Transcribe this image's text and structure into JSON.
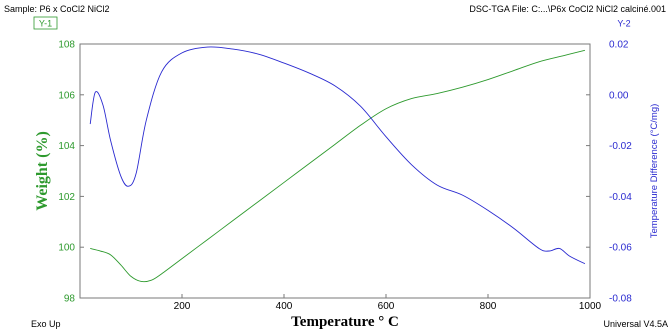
{
  "header": {
    "sample": "Sample: P6 x CoCl2 NiCl2",
    "file": "DSC-TGA File: C:...\\P6x  CoCl2 NiCl2 calciné.001"
  },
  "footer": {
    "exo": "Exo Up",
    "software": "Universal V4.5A"
  },
  "colors": {
    "weight": "#2e9a2e",
    "temp_diff": "#2a2ad0",
    "frame": "#7a7a7a"
  },
  "chart_data": {
    "type": "line",
    "xlabel": "Temperature ° C",
    "ylabel_left": "Weight (%)",
    "ylabel_right": "Temperature Difference (°C/mg)",
    "left_axis_tag": "Y-1",
    "right_axis_tag": "Y-2",
    "xlim": [
      0,
      1000
    ],
    "ylim_left": [
      98,
      108
    ],
    "ylim_right": [
      -0.08,
      0.02
    ],
    "x_ticks": [
      0,
      200,
      400,
      600,
      800,
      1000
    ],
    "x_tick_labels": [
      "",
      "200",
      "400",
      "600",
      "800",
      "1000"
    ],
    "y_left_ticks": [
      98,
      100,
      102,
      104,
      106,
      108
    ],
    "y_right_ticks": [
      -0.08,
      -0.06,
      -0.04,
      -0.02,
      0.0,
      0.02
    ],
    "y_right_tick_labels": [
      "-0.08",
      "-0.06",
      "-0.04",
      "-0.02",
      "0.00",
      "0.02"
    ],
    "series": [
      {
        "axis": "left",
        "x": [
          20,
          40,
          60,
          80,
          100,
          120,
          140,
          160,
          200,
          250,
          300,
          350,
          400,
          450,
          500,
          550,
          600,
          650,
          700,
          750,
          800,
          850,
          900,
          950,
          990
        ],
        "y": [
          99.95,
          99.85,
          99.7,
          99.3,
          98.85,
          98.65,
          98.7,
          98.95,
          99.55,
          100.3,
          101.05,
          101.8,
          102.55,
          103.3,
          104.05,
          104.8,
          105.45,
          105.85,
          106.05,
          106.3,
          106.6,
          106.95,
          107.3,
          107.55,
          107.75
        ]
      },
      {
        "axis": "right",
        "x": [
          20,
          30,
          45,
          60,
          80,
          95,
          110,
          130,
          160,
          200,
          250,
          300,
          350,
          400,
          450,
          500,
          550,
          600,
          650,
          700,
          750,
          800,
          850,
          900,
          920,
          940,
          960,
          990
        ],
        "y": [
          -0.0115,
          0.001,
          -0.004,
          -0.018,
          -0.032,
          -0.036,
          -0.031,
          -0.01,
          0.009,
          0.0165,
          0.0188,
          0.018,
          0.016,
          0.0125,
          0.0085,
          0.0035,
          -0.0045,
          -0.0165,
          -0.0275,
          -0.0355,
          -0.0395,
          -0.0455,
          -0.0525,
          -0.0605,
          -0.0615,
          -0.0605,
          -0.0635,
          -0.0665
        ]
      }
    ]
  }
}
